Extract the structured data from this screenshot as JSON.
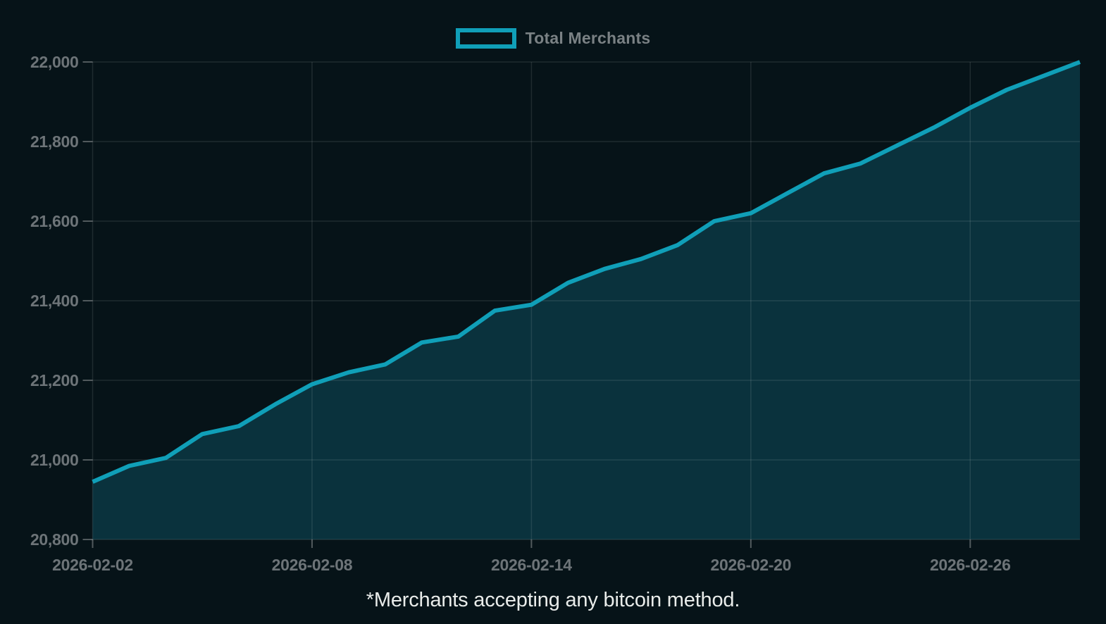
{
  "legend": {
    "label": "Total Merchants"
  },
  "footnote": "*Merchants accepting any bitcoin method.",
  "colors": {
    "background": "#061318",
    "line": "#109fb8",
    "area_fill": "#0a323d",
    "gridline": "rgba(255,255,255,0.10)",
    "tick": "rgba(255,255,255,0.30)",
    "axis_label": "#6d7478",
    "legend_label": "#7a8184",
    "footnote_text": "#e9ecea"
  },
  "chart_data": {
    "type": "area",
    "title": "",
    "xlabel": "",
    "ylabel": "",
    "grid": true,
    "legend_position": "top-center",
    "ylim": [
      20800,
      22000
    ],
    "y_ticks": [
      20800,
      21000,
      21200,
      21400,
      21600,
      21800,
      22000
    ],
    "y_tick_labels": [
      "20,800",
      "21,000",
      "21,200",
      "21,400",
      "21,600",
      "21,800",
      "22,000"
    ],
    "x_tick_labels": [
      "2026-02-02",
      "2026-02-08",
      "2026-02-14",
      "2026-02-20",
      "2026-02-26"
    ],
    "series": [
      {
        "name": "Total Merchants",
        "x": [
          "2026-02-02",
          "2026-02-03",
          "2026-02-04",
          "2026-02-05",
          "2026-02-06",
          "2026-02-07",
          "2026-02-08",
          "2026-02-09",
          "2026-02-10",
          "2026-02-11",
          "2026-02-12",
          "2026-02-13",
          "2026-02-14",
          "2026-02-15",
          "2026-02-16",
          "2026-02-17",
          "2026-02-18",
          "2026-02-19",
          "2026-02-20",
          "2026-02-21",
          "2026-02-22",
          "2026-02-23",
          "2026-02-24",
          "2026-02-25",
          "2026-02-26",
          "2026-02-27",
          "2026-02-28",
          "2026-03-01"
        ],
        "values": [
          20945,
          20985,
          21005,
          21065,
          21085,
          21140,
          21190,
          21220,
          21240,
          21295,
          21310,
          21375,
          21390,
          21445,
          21480,
          21505,
          21540,
          21600,
          21620,
          21670,
          21720,
          21745,
          21790,
          21835,
          21885,
          21930,
          21965,
          22000
        ]
      }
    ]
  }
}
